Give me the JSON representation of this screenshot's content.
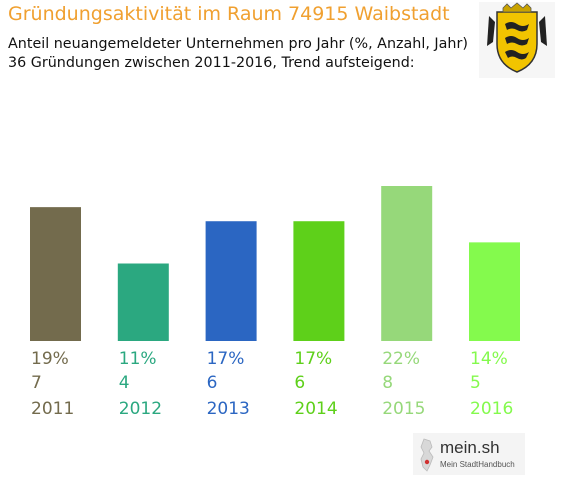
{
  "header": {
    "title": "Gründungsaktivität im Raum 74915 Waibstadt",
    "title_color": "#f0a030",
    "subtitle_line1": "Anteil neuangemeldeter Unternehmen pro Jahr (%, Anzahl, Jahr)",
    "subtitle_line2": "36 Gründungen zwischen 2011-2016, Trend aufsteigend:"
  },
  "crest": {
    "icon": "coat-of-arms-icon"
  },
  "logo": {
    "icon": "mein-sh-logo-icon",
    "main_text": "mein.sh",
    "sub_text": "Mein StadtHandbuch"
  },
  "chart_data": {
    "type": "bar",
    "categories": [
      "2011",
      "2012",
      "2013",
      "2014",
      "2015",
      "2016"
    ],
    "values": [
      19,
      11,
      17,
      17,
      22,
      14
    ],
    "percent_labels": [
      "19%",
      "11%",
      "17%",
      "17%",
      "22%",
      "14%"
    ],
    "counts": [
      7,
      4,
      6,
      6,
      8,
      5
    ],
    "colors": [
      "#736b4d",
      "#2ba880",
      "#2b66c2",
      "#5ed01a",
      "#96d87a",
      "#84fa4d"
    ],
    "ylim": [
      0,
      22
    ],
    "grid": false,
    "legend": "none"
  }
}
